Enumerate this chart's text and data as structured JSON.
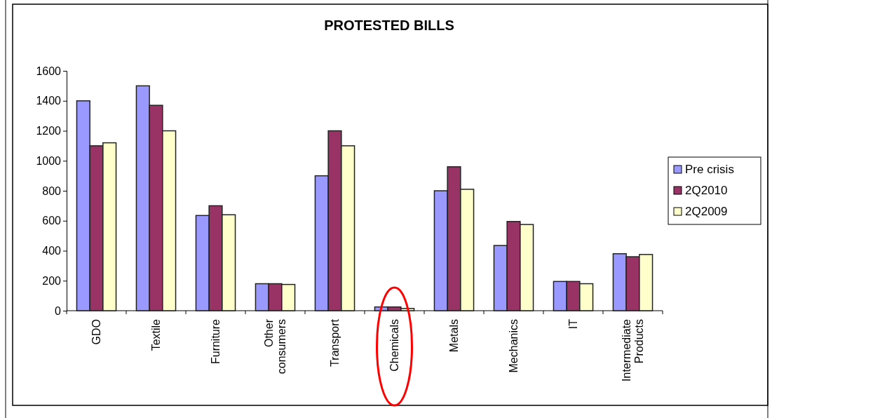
{
  "chart_data": {
    "type": "bar",
    "title": "PROTESTED BILLS",
    "categories": [
      "GDO",
      "Textile",
      "Furniture",
      "Other consumers",
      "Transport",
      "Chemicals",
      "Metals",
      "Mechanics",
      "IT",
      "Intermediate Products"
    ],
    "series": [
      {
        "name": "Pre crisis",
        "color": "#9999ff",
        "values": [
          1400,
          1500,
          635,
          180,
          900,
          25,
          800,
          435,
          195,
          380
        ]
      },
      {
        "name": "2Q2010",
        "color": "#993366",
        "values": [
          1100,
          1370,
          700,
          180,
          1200,
          25,
          960,
          595,
          195,
          360
        ]
      },
      {
        "name": "2Q2009",
        "color": "#ffffcc",
        "values": [
          1120,
          1200,
          640,
          175,
          1100,
          15,
          810,
          575,
          180,
          375
        ]
      }
    ],
    "ylim": [
      0,
      1600
    ],
    "yticks": [
      0,
      200,
      400,
      600,
      800,
      1000,
      1200,
      1400,
      1600
    ],
    "grid": false,
    "legend": "right"
  }
}
